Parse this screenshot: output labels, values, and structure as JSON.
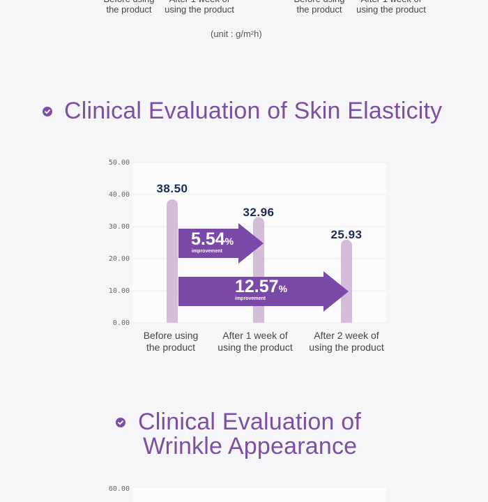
{
  "prev_chart": {
    "x_labels": [
      "Before using\nthe product",
      "After 1 week of\nusing the product",
      "Before using\nthe product",
      "After 1 week of\nusing the product"
    ],
    "unit": "(unit : g/m²h)"
  },
  "sections": {
    "elasticity_title": "Clinical Evaluation of Skin Elasticity",
    "wrinkle_title_line1": "Clinical Evaluation of",
    "wrinkle_title_line2": "Wrinkle Appearance"
  },
  "colors": {
    "accent": "#7d4fa3",
    "bar": "#d3bdd9",
    "arrow": "#7b4aa8",
    "value_text": "#1d2a55"
  },
  "chart_data": [
    {
      "type": "bar",
      "title": "Clinical Evaluation of Skin Elasticity",
      "categories": [
        "Before using\nthe product",
        "After 1 week of\nusing the product",
        "After 2 week of\nusing the product"
      ],
      "values": [
        38.5,
        32.96,
        25.93
      ],
      "value_labels": [
        "38.50",
        "32.96",
        "25.93"
      ],
      "ylim": [
        0,
        50
      ],
      "yticks": [
        "50.00",
        "40.00",
        "30.00",
        "20.00",
        "10.00",
        "0.00"
      ],
      "grid": true,
      "annotations": [
        {
          "value": "5.54",
          "unit": "%",
          "label": "improvement",
          "from": 0,
          "to": 1
        },
        {
          "value": "12.57",
          "unit": "%",
          "label": "improvement",
          "from": 0,
          "to": 2
        }
      ]
    },
    {
      "type": "bar",
      "title": "Clinical Evaluation of Wrinkle Appearance",
      "yticks_visible": [
        "60.00"
      ]
    }
  ]
}
